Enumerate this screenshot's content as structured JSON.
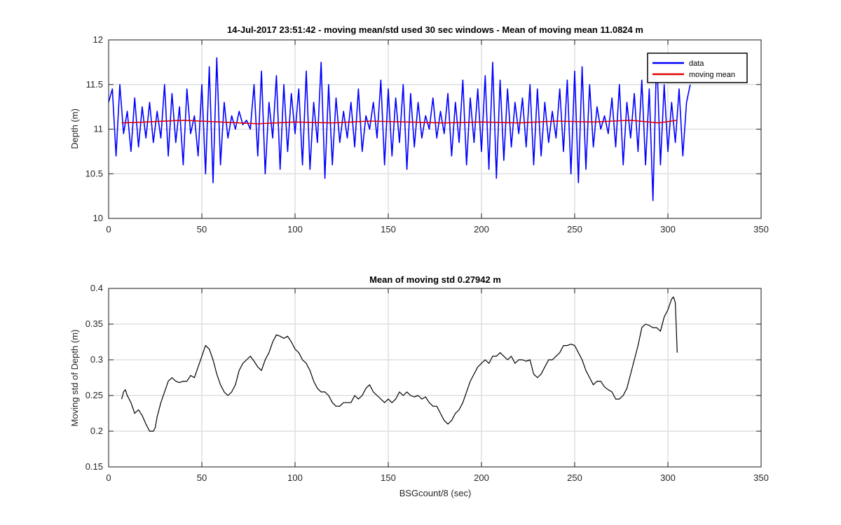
{
  "figure": {
    "background": "#ffffff"
  },
  "chart_data": [
    {
      "type": "line",
      "title": "14-Jul-2017 23:51:42 - moving mean/std used 30 sec windows - Mean of moving mean 11.0824 m",
      "xlabel": "",
      "ylabel": "Depth (m)",
      "xlim": [
        0,
        350
      ],
      "ylim": [
        10,
        12
      ],
      "xticks": [
        0,
        50,
        100,
        150,
        200,
        250,
        300,
        350
      ],
      "yticks": [
        10,
        10.5,
        11,
        11.5,
        12
      ],
      "ytick_labels": [
        "10",
        "10.5",
        "11",
        "11.5",
        "12"
      ],
      "grid": true,
      "legend_position": "top-right",
      "legend": [
        "data",
        "moving mean"
      ],
      "series": [
        {
          "name": "data",
          "color": "#0000ff",
          "note": "oscillating wave record, period about 4-5 s",
          "x": [
            0,
            2,
            4,
            6,
            8,
            10,
            12,
            14,
            16,
            18,
            20,
            22,
            24,
            26,
            28,
            30,
            32,
            34,
            36,
            38,
            40,
            42,
            44,
            46,
            48,
            50,
            52,
            54,
            56,
            58,
            60,
            62,
            64,
            66,
            68,
            70,
            72,
            74,
            76,
            78,
            80,
            82,
            84,
            86,
            88,
            90,
            92,
            94,
            96,
            98,
            100,
            102,
            104,
            106,
            108,
            110,
            112,
            114,
            116,
            118,
            120,
            122,
            124,
            126,
            128,
            130,
            132,
            134,
            136,
            138,
            140,
            142,
            144,
            146,
            148,
            150,
            152,
            154,
            156,
            158,
            160,
            162,
            164,
            166,
            168,
            170,
            172,
            174,
            176,
            178,
            180,
            182,
            184,
            186,
            188,
            190,
            192,
            194,
            196,
            198,
            200,
            202,
            204,
            206,
            208,
            210,
            212,
            214,
            216,
            218,
            220,
            222,
            224,
            226,
            228,
            230,
            232,
            234,
            236,
            238,
            240,
            242,
            244,
            246,
            248,
            250,
            252,
            254,
            256,
            258,
            260,
            262,
            264,
            266,
            268,
            270,
            272,
            274,
            276,
            278,
            280,
            282,
            284,
            286,
            288,
            290,
            292,
            294,
            296,
            298,
            300,
            302,
            304,
            306,
            308,
            310,
            312
          ],
          "y": [
            11.3,
            11.45,
            10.7,
            11.5,
            10.95,
            11.2,
            10.75,
            11.35,
            10.8,
            11.25,
            10.9,
            11.3,
            10.85,
            11.2,
            10.9,
            11.5,
            10.7,
            11.4,
            10.85,
            11.25,
            10.6,
            11.45,
            10.95,
            11.15,
            10.7,
            11.5,
            10.5,
            11.7,
            10.4,
            11.8,
            10.6,
            11.3,
            10.9,
            11.15,
            11.0,
            11.2,
            11.05,
            11.1,
            11.0,
            11.5,
            10.7,
            11.65,
            10.5,
            11.3,
            10.9,
            11.6,
            10.55,
            11.5,
            10.75,
            11.4,
            10.95,
            11.45,
            10.6,
            11.65,
            10.55,
            11.3,
            10.85,
            11.75,
            10.45,
            11.5,
            10.6,
            11.35,
            10.85,
            11.2,
            10.9,
            11.3,
            10.8,
            11.45,
            10.75,
            11.15,
            11.0,
            11.3,
            10.9,
            11.55,
            10.6,
            11.45,
            10.7,
            11.35,
            10.85,
            11.5,
            10.55,
            11.4,
            10.8,
            11.3,
            10.9,
            11.15,
            11.0,
            11.35,
            10.9,
            11.2,
            10.95,
            11.4,
            10.7,
            11.3,
            10.85,
            11.55,
            10.6,
            11.35,
            10.85,
            11.45,
            10.75,
            11.6,
            10.55,
            11.75,
            10.45,
            11.55,
            10.65,
            11.45,
            10.8,
            11.3,
            10.95,
            11.35,
            10.8,
            11.5,
            10.6,
            11.45,
            10.7,
            11.3,
            10.85,
            11.2,
            10.9,
            11.45,
            10.75,
            11.55,
            10.5,
            11.65,
            10.4,
            11.7,
            10.55,
            11.5,
            10.8,
            11.25,
            11.0,
            11.15,
            10.95,
            11.35,
            10.8,
            11.5,
            10.6,
            11.3,
            10.9,
            11.4,
            10.75,
            11.55,
            10.6,
            11.45,
            10.2,
            11.85,
            10.6,
            11.5,
            10.75,
            11.3,
            10.85,
            11.45,
            10.7,
            11.3,
            11.5
          ]
        },
        {
          "name": "moving mean",
          "color": "#e00000",
          "x": [
            7,
            20,
            40,
            60,
            80,
            100,
            120,
            140,
            160,
            180,
            200,
            220,
            240,
            260,
            280,
            295,
            305
          ],
          "y": [
            11.07,
            11.08,
            11.1,
            11.08,
            11.06,
            11.08,
            11.07,
            11.09,
            11.08,
            11.07,
            11.08,
            11.07,
            11.09,
            11.08,
            11.1,
            11.07,
            11.1
          ]
        }
      ]
    },
    {
      "type": "line",
      "title": "Mean of moving std 0.27942 m",
      "xlabel": "BSGcount/8 (sec)",
      "ylabel": "Moving std of Depth (m)",
      "xlim": [
        0,
        350
      ],
      "ylim": [
        0.15,
        0.4
      ],
      "xticks": [
        0,
        50,
        100,
        150,
        200,
        250,
        300,
        350
      ],
      "yticks": [
        0.15,
        0.2,
        0.25,
        0.3,
        0.35,
        0.4
      ],
      "ytick_labels": [
        "0.15",
        "0.2",
        "0.25",
        "0.3",
        "0.35",
        "0.4"
      ],
      "grid": true,
      "series": [
        {
          "color": "#000000",
          "x": [
            7,
            8,
            9,
            10,
            12,
            14,
            16,
            18,
            20,
            22,
            24,
            25,
            26,
            28,
            30,
            32,
            34,
            36,
            38,
            40,
            42,
            44,
            46,
            48,
            50,
            52,
            54,
            56,
            58,
            60,
            62,
            64,
            66,
            68,
            70,
            72,
            74,
            76,
            78,
            80,
            82,
            84,
            86,
            88,
            90,
            92,
            94,
            96,
            98,
            100,
            102,
            104,
            106,
            108,
            110,
            112,
            114,
            116,
            118,
            120,
            122,
            124,
            126,
            128,
            130,
            132,
            134,
            136,
            138,
            140,
            142,
            144,
            146,
            148,
            150,
            152,
            154,
            156,
            158,
            160,
            162,
            164,
            166,
            168,
            170,
            172,
            174,
            176,
            178,
            180,
            182,
            184,
            186,
            188,
            190,
            192,
            194,
            196,
            198,
            200,
            202,
            204,
            206,
            208,
            210,
            212,
            214,
            216,
            218,
            220,
            222,
            224,
            226,
            228,
            230,
            232,
            234,
            236,
            238,
            240,
            242,
            244,
            246,
            248,
            250,
            252,
            254,
            256,
            258,
            260,
            262,
            264,
            266,
            268,
            270,
            272,
            274,
            276,
            278,
            280,
            282,
            284,
            286,
            288,
            290,
            292,
            294,
            296,
            298,
            300,
            302,
            303,
            304,
            305
          ],
          "y": [
            0.245,
            0.255,
            0.258,
            0.25,
            0.24,
            0.225,
            0.23,
            0.222,
            0.21,
            0.2,
            0.2,
            0.205,
            0.22,
            0.24,
            0.255,
            0.27,
            0.275,
            0.27,
            0.268,
            0.27,
            0.27,
            0.278,
            0.275,
            0.29,
            0.305,
            0.32,
            0.315,
            0.3,
            0.28,
            0.265,
            0.255,
            0.25,
            0.255,
            0.265,
            0.285,
            0.295,
            0.3,
            0.305,
            0.298,
            0.29,
            0.285,
            0.3,
            0.31,
            0.325,
            0.335,
            0.333,
            0.33,
            0.333,
            0.325,
            0.315,
            0.31,
            0.3,
            0.295,
            0.285,
            0.27,
            0.26,
            0.255,
            0.255,
            0.25,
            0.24,
            0.235,
            0.235,
            0.24,
            0.24,
            0.24,
            0.25,
            0.245,
            0.25,
            0.26,
            0.265,
            0.255,
            0.25,
            0.245,
            0.24,
            0.245,
            0.24,
            0.245,
            0.255,
            0.25,
            0.255,
            0.25,
            0.248,
            0.25,
            0.245,
            0.248,
            0.24,
            0.235,
            0.235,
            0.225,
            0.215,
            0.21,
            0.215,
            0.225,
            0.23,
            0.24,
            0.255,
            0.27,
            0.28,
            0.29,
            0.295,
            0.3,
            0.295,
            0.305,
            0.305,
            0.31,
            0.305,
            0.3,
            0.305,
            0.295,
            0.3,
            0.3,
            0.298,
            0.3,
            0.28,
            0.275,
            0.28,
            0.29,
            0.3,
            0.3,
            0.305,
            0.31,
            0.32,
            0.32,
            0.322,
            0.32,
            0.31,
            0.3,
            0.285,
            0.275,
            0.265,
            0.27,
            0.27,
            0.262,
            0.258,
            0.255,
            0.245,
            0.245,
            0.25,
            0.26,
            0.28,
            0.3,
            0.32,
            0.345,
            0.35,
            0.348,
            0.345,
            0.345,
            0.34,
            0.36,
            0.37,
            0.385,
            0.388,
            0.38,
            0.31
          ]
        }
      ]
    }
  ]
}
